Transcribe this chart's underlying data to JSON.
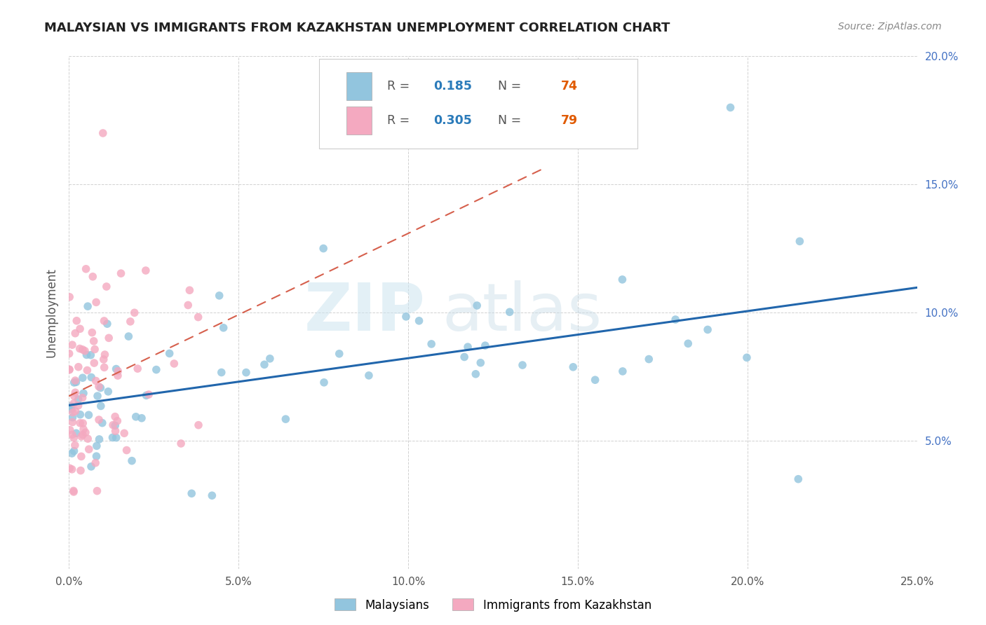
{
  "title": "MALAYSIAN VS IMMIGRANTS FROM KAZAKHSTAN UNEMPLOYMENT CORRELATION CHART",
  "source": "Source: ZipAtlas.com",
  "ylabel": "Unemployment",
  "legend_malaysians": "Malaysians",
  "legend_immigrants": "Immigrants from Kazakhstan",
  "R_malaysians": 0.185,
  "N_malaysians": 74,
  "R_immigrants": 0.305,
  "N_immigrants": 79,
  "xlim": [
    0.0,
    0.25
  ],
  "ylim": [
    0.0,
    0.2
  ],
  "xticks": [
    0.0,
    0.05,
    0.1,
    0.15,
    0.2,
    0.25
  ],
  "yticks": [
    0.0,
    0.05,
    0.1,
    0.15,
    0.2
  ],
  "xticklabels": [
    "0.0%",
    "5.0%",
    "10.0%",
    "15.0%",
    "20.0%",
    "25.0%"
  ],
  "yticklabels_right": [
    "",
    "5.0%",
    "10.0%",
    "15.0%",
    "20.0%"
  ],
  "color_malaysians": "#92c5de",
  "color_immigrants": "#f4a9c0",
  "color_trend_malaysians": "#2166ac",
  "color_trend_immigrants": "#d6604d",
  "watermark_zip": "ZIP",
  "watermark_atlas": "atlas",
  "background_color": "#ffffff",
  "grid_color": "#cccccc",
  "title_fontsize": 13,
  "source_fontsize": 10,
  "tick_fontsize": 11,
  "ylabel_fontsize": 12
}
